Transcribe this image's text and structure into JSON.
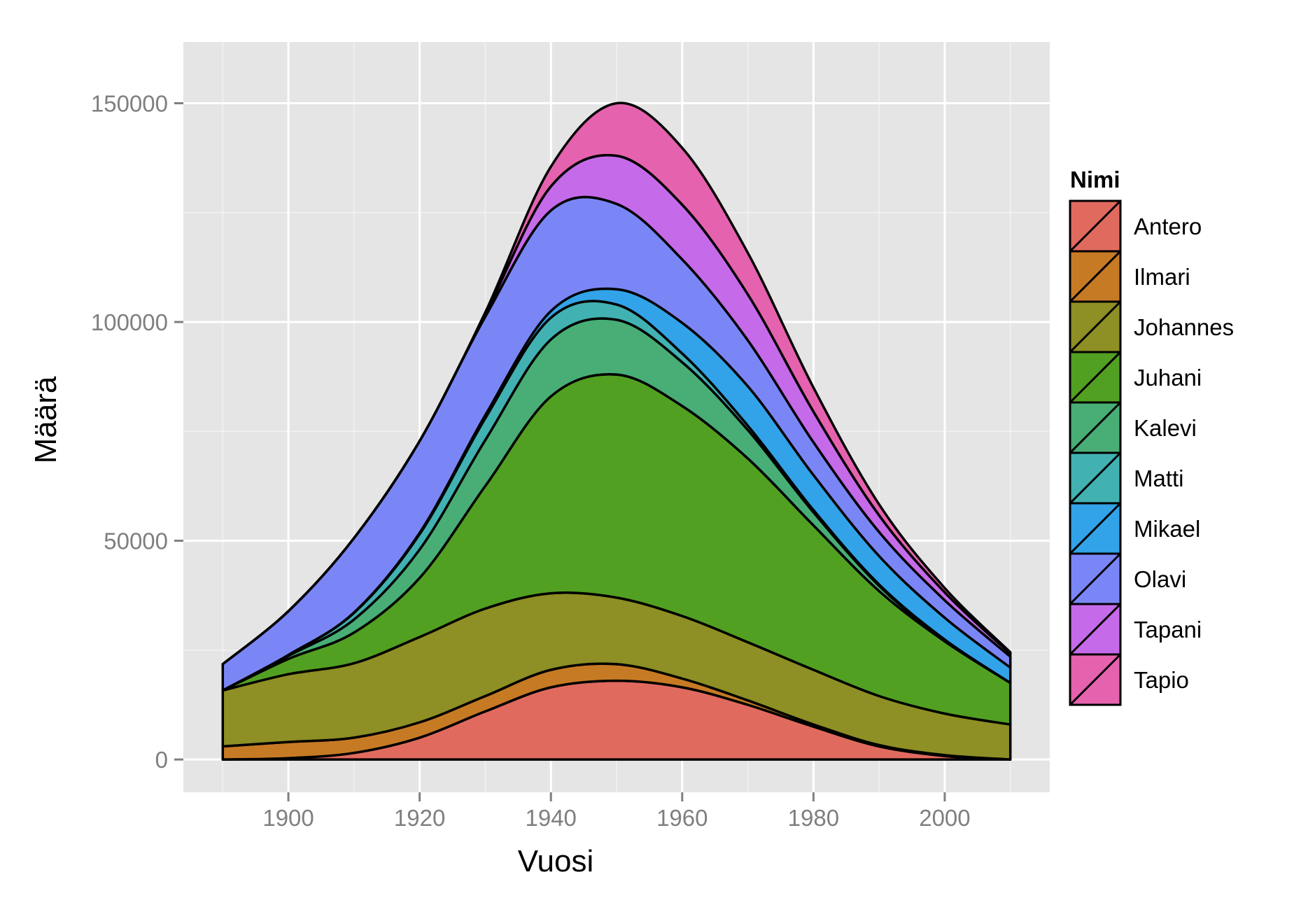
{
  "chart_data": {
    "type": "area",
    "stacked": true,
    "xlabel": "Vuosi",
    "ylabel": "Määrä",
    "xlim": [
      1884,
      2016
    ],
    "ylim": [
      -7500,
      164000
    ],
    "xticks": [
      1900,
      1920,
      1940,
      1960,
      1980,
      2000
    ],
    "yticks": [
      0,
      50000,
      100000,
      150000
    ],
    "ytick_labels": [
      "0",
      "50000",
      "100000",
      "150000"
    ],
    "xtick_labels": [
      "1900",
      "1920",
      "1940",
      "1960",
      "1980",
      "2000"
    ],
    "grid": true,
    "legend": {
      "title": "Nimi",
      "position": "right"
    },
    "x": [
      1890,
      1900,
      1910,
      1920,
      1930,
      1940,
      1950,
      1960,
      1970,
      1980,
      1990,
      2000,
      2010
    ],
    "series": [
      {
        "name": "Antero",
        "color": "#E16A5F",
        "values": [
          0,
          300,
          1500,
          5000,
          11000,
          16500,
          18000,
          16500,
          12500,
          7500,
          3000,
          800,
          0
        ]
      },
      {
        "name": "Ilmari",
        "color": "#C77A24",
        "values": [
          3000,
          3700,
          3500,
          3500,
          3500,
          4000,
          3800,
          2000,
          1000,
          500,
          300,
          200,
          0
        ]
      },
      {
        "name": "Johannes",
        "color": "#8E8F24",
        "values": [
          12800,
          15500,
          17000,
          19500,
          20000,
          17500,
          15200,
          14300,
          13300,
          12500,
          11200,
          9500,
          8000
        ]
      },
      {
        "name": "Juhani",
        "color": "#52A022",
        "values": [
          0,
          3500,
          7000,
          13500,
          28000,
          45000,
          51000,
          48000,
          42000,
          33000,
          24000,
          16500,
          9500
        ]
      },
      {
        "name": "Kalevi",
        "color": "#48AE76",
        "values": [
          0,
          700,
          3000,
          6500,
          10500,
          13000,
          12500,
          10000,
          6500,
          3000,
          1200,
          200,
          0
        ]
      },
      {
        "name": "Matti",
        "color": "#42B1B2",
        "values": [
          0,
          200,
          1500,
          3500,
          5000,
          5000,
          3500,
          2000,
          1000,
          500,
          300,
          200,
          0
        ]
      },
      {
        "name": "Mikael",
        "color": "#32A3E8",
        "values": [
          0,
          0,
          100,
          300,
          700,
          1500,
          3500,
          7000,
          9000,
          8000,
          6500,
          5000,
          3500
        ]
      },
      {
        "name": "Olavi",
        "color": "#7B86F6",
        "values": [
          6000,
          10000,
          17000,
          21000,
          22500,
          23000,
          19500,
          14500,
          10500,
          7500,
          5500,
          4000,
          2500
        ]
      },
      {
        "name": "Tapani",
        "color": "#C56AE9",
        "values": [
          0,
          0,
          0,
          0,
          600,
          5500,
          11000,
          12500,
          10500,
          7000,
          3800,
          1800,
          700
        ]
      },
      {
        "name": "Tapio",
        "color": "#E562AE",
        "values": [
          0,
          0,
          0,
          0,
          400,
          4500,
          12000,
          13000,
          9500,
          5500,
          2500,
          1000,
          300
        ]
      }
    ]
  }
}
